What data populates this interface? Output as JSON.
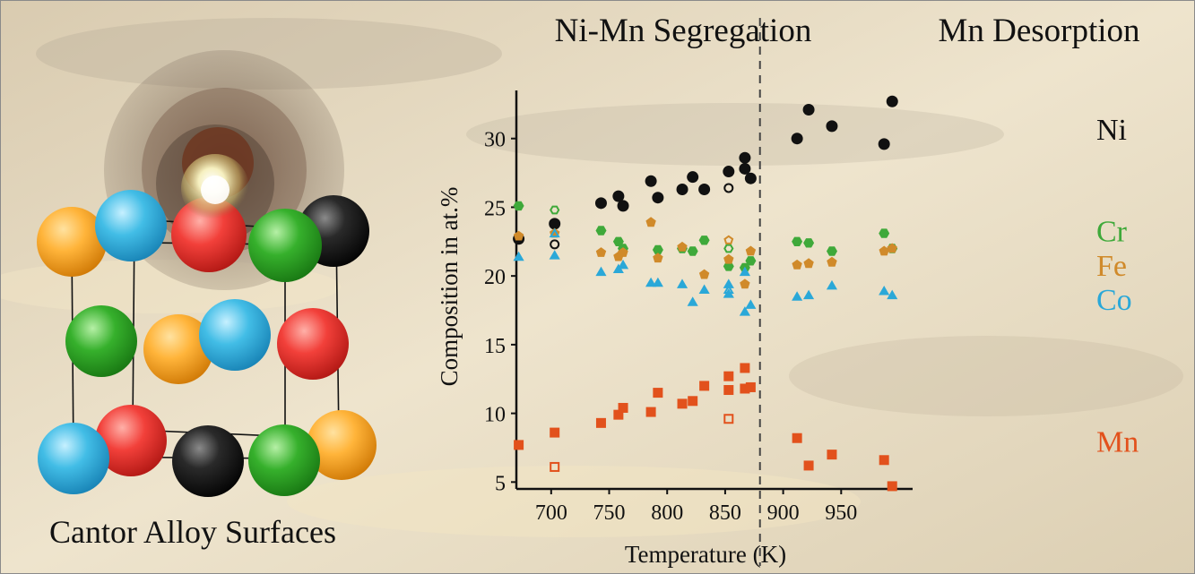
{
  "image_caption": "Cantor Alloy Surfaces",
  "regions": {
    "left_title": "Ni-Mn Segregation",
    "right_title": "Mn Desorption"
  },
  "colors": {
    "Ni": "#111111",
    "Cr": "#3fa93a",
    "Fe": "#d08a2a",
    "Co": "#2aa8d8",
    "Mn": "#e2511c",
    "background": "#e7dcc3"
  },
  "chart_data": {
    "type": "scatter",
    "title": "",
    "xlabel": "Temperature (K)",
    "ylabel": "Composition in at.%",
    "xlim": [
      670,
      1000
    ],
    "ylim": [
      4.5,
      33.5
    ],
    "x_ticks": [
      700,
      750,
      800,
      850,
      900,
      950
    ],
    "y_ticks": [
      5,
      10,
      15,
      20,
      25,
      30
    ],
    "divider_x": 880,
    "grid": false,
    "legend_placement": "right",
    "series": [
      {
        "name": "Ni",
        "marker": "circle",
        "color": "#111111",
        "points": [
          [
            672,
            22.7
          ],
          [
            703,
            23.8
          ],
          [
            743,
            25.3
          ],
          [
            758,
            25.8
          ],
          [
            762,
            25.1
          ],
          [
            786,
            26.9
          ],
          [
            792,
            25.7
          ],
          [
            813,
            26.3
          ],
          [
            822,
            27.2
          ],
          [
            832,
            26.3
          ],
          [
            853,
            27.6
          ],
          [
            867,
            28.6
          ],
          [
            867,
            27.8
          ],
          [
            872,
            27.1
          ],
          [
            912,
            30.0
          ],
          [
            922,
            32.1
          ],
          [
            942,
            30.9
          ],
          [
            987,
            29.6
          ],
          [
            994,
            32.7
          ]
        ],
        "open_points": [
          [
            703,
            22.3
          ],
          [
            853,
            26.4
          ]
        ]
      },
      {
        "name": "Cr",
        "marker": "hexagon",
        "color": "#3fa93a",
        "points": [
          [
            672,
            25.1
          ],
          [
            743,
            23.3
          ],
          [
            758,
            22.5
          ],
          [
            762,
            22.0
          ],
          [
            792,
            21.9
          ],
          [
            813,
            22.0
          ],
          [
            822,
            21.8
          ],
          [
            832,
            22.6
          ],
          [
            853,
            20.7
          ],
          [
            867,
            20.6
          ],
          [
            872,
            21.1
          ],
          [
            912,
            22.5
          ],
          [
            922,
            22.4
          ],
          [
            942,
            21.8
          ],
          [
            987,
            23.1
          ],
          [
            994,
            22.0
          ]
        ],
        "open_points": [
          [
            703,
            24.8
          ],
          [
            853,
            22.0
          ]
        ]
      },
      {
        "name": "Fe",
        "marker": "pentagon",
        "color": "#d08a2a",
        "points": [
          [
            672,
            22.9
          ],
          [
            703,
            23.1
          ],
          [
            743,
            21.7
          ],
          [
            758,
            21.4
          ],
          [
            762,
            21.7
          ],
          [
            786,
            23.9
          ],
          [
            792,
            21.3
          ],
          [
            813,
            22.1
          ],
          [
            832,
            20.1
          ],
          [
            853,
            21.2
          ],
          [
            867,
            19.4
          ],
          [
            872,
            21.8
          ],
          [
            912,
            20.8
          ],
          [
            922,
            20.9
          ],
          [
            942,
            21.0
          ],
          [
            987,
            21.8
          ],
          [
            994,
            22.0
          ]
        ],
        "open_points": [
          [
            853,
            22.6
          ]
        ]
      },
      {
        "name": "Co",
        "marker": "triangle",
        "color": "#2aa8d8",
        "points": [
          [
            672,
            21.4
          ],
          [
            703,
            21.5
          ],
          [
            743,
            20.3
          ],
          [
            758,
            20.5
          ],
          [
            762,
            20.8
          ],
          [
            786,
            19.5
          ],
          [
            792,
            19.5
          ],
          [
            813,
            19.4
          ],
          [
            822,
            18.1
          ],
          [
            832,
            19.0
          ],
          [
            853,
            19.4
          ],
          [
            853,
            18.7
          ],
          [
            867,
            20.3
          ],
          [
            867,
            17.4
          ],
          [
            872,
            17.9
          ],
          [
            912,
            18.5
          ],
          [
            922,
            18.6
          ],
          [
            942,
            19.3
          ],
          [
            987,
            18.9
          ],
          [
            994,
            18.6
          ]
        ],
        "open_points": [
          [
            703,
            23.1
          ],
          [
            853,
            19.0
          ]
        ]
      },
      {
        "name": "Mn",
        "marker": "square",
        "color": "#e2511c",
        "points": [
          [
            672,
            7.7
          ],
          [
            703,
            8.6
          ],
          [
            743,
            9.3
          ],
          [
            758,
            9.9
          ],
          [
            762,
            10.4
          ],
          [
            786,
            10.1
          ],
          [
            792,
            11.5
          ],
          [
            813,
            10.7
          ],
          [
            822,
            10.9
          ],
          [
            832,
            12.0
          ],
          [
            853,
            12.7
          ],
          [
            853,
            11.7
          ],
          [
            867,
            13.3
          ],
          [
            867,
            11.8
          ],
          [
            872,
            11.9
          ],
          [
            912,
            8.2
          ],
          [
            922,
            6.2
          ],
          [
            942,
            7.0
          ],
          [
            987,
            6.6
          ],
          [
            994,
            4.7
          ]
        ],
        "open_points": [
          [
            703,
            6.1
          ],
          [
            853,
            9.6
          ]
        ]
      }
    ]
  }
}
